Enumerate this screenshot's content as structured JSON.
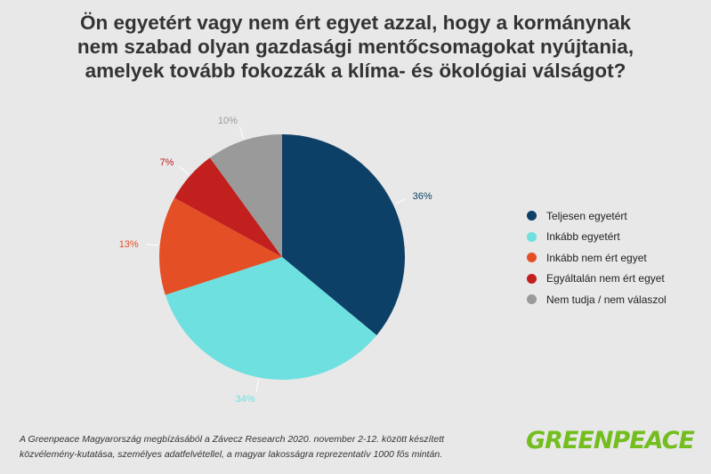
{
  "title_lines": [
    "Ön egyetért vagy nem ért egyet azzal, hogy a kormánynak",
    "nem szabad olyan gazdasági mentőcsomagokat nyújtania,",
    "amelyek tovább fokozzák a klíma- és ökológiai válságot?"
  ],
  "chart_data": {
    "type": "pie",
    "slices": [
      {
        "label": "Teljesen egyetért",
        "value": 36,
        "value_label": "36%",
        "color": "#0d4066"
      },
      {
        "label": "Inkább egyetért",
        "value": 34,
        "value_label": "34%",
        "color": "#6ee0e0"
      },
      {
        "label": "Inkább nem ért egyet",
        "value": 13,
        "value_label": "13%",
        "color": "#e54f26"
      },
      {
        "label": "Egyáltalán nem ért egyet",
        "value": 7,
        "value_label": "7%",
        "color": "#c1201e"
      },
      {
        "label": "Nem tudja / nem válaszol",
        "value": 10,
        "value_label": "10%",
        "color": "#9a9a9a"
      }
    ],
    "start": "12 o'clock",
    "direction": "clockwise",
    "legend": "right"
  },
  "footnote_lines": [
    "A Greenpeace Magyarország megbízásából a Závecz Research 2020. november 2-12. között készített",
    "közvélemény-kutatása, személyes adatfelvétellel, a magyar lakosságra reprezentatív 1000 fős mintán."
  ],
  "brand": "GREENPEACE",
  "brand_color": "#73be1e"
}
